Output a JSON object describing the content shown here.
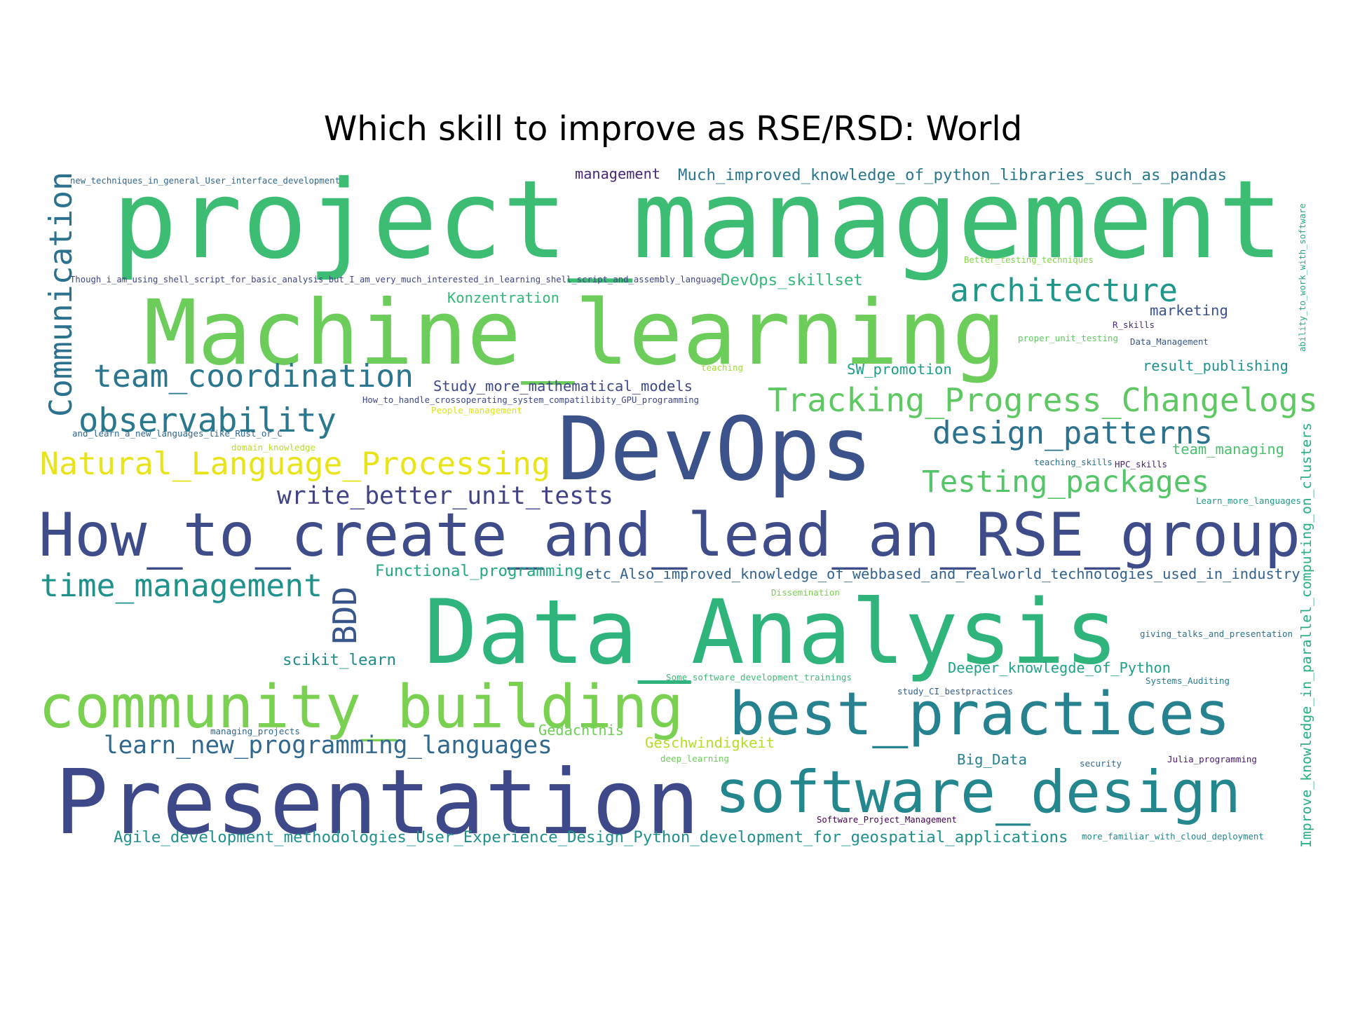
{
  "title": "Which skill to improve as RSE/RSD: World",
  "words": [
    {
      "text": "project_management",
      "color": "#3dbc74"
    },
    {
      "text": "Machine_learning",
      "color": "#6ccd5a"
    },
    {
      "text": "DevOps",
      "color": "#3b528b"
    },
    {
      "text": "Data_Analysis",
      "color": "#2fb47c"
    },
    {
      "text": "How_to_create_and_lead_an_RSE_group",
      "color": "#3e4c8a"
    },
    {
      "text": "Presentation",
      "color": "#3e4989"
    },
    {
      "text": "community_building",
      "color": "#7ad151"
    },
    {
      "text": "best_practices",
      "color": "#26828e"
    },
    {
      "text": "software_design",
      "color": "#24878e"
    },
    {
      "text": "Tracking_Progress_Changelogs",
      "color": "#5ec962"
    },
    {
      "text": "Natural_Language_Processing",
      "color": "#e8e419"
    },
    {
      "text": "architecture",
      "color": "#1f988b"
    },
    {
      "text": "design_patterns",
      "color": "#2c718e"
    },
    {
      "text": "observability",
      "color": "#2a788e"
    },
    {
      "text": "team_coordination",
      "color": "#2a768e"
    },
    {
      "text": "Testing_packages",
      "color": "#54c568"
    },
    {
      "text": "time_management",
      "color": "#20928c"
    },
    {
      "text": "Communication",
      "color": "#2c728e"
    },
    {
      "text": "write_better_unit_tests",
      "color": "#414487"
    },
    {
      "text": "learn_new_programming_languages",
      "color": "#31688e"
    },
    {
      "text": "BDD",
      "color": "#39568c"
    },
    {
      "text": "Much_improved_knowledge_of_python_libraries_such_as_pandas",
      "color": "#2a788e"
    },
    {
      "text": "management",
      "color": "#482878"
    },
    {
      "text": "DevOps_skillset",
      "color": "#35b779"
    },
    {
      "text": "Konzentration",
      "color": "#35b779"
    },
    {
      "text": "marketing",
      "color": "#3b528b"
    },
    {
      "text": "result_publishing",
      "color": "#21918c"
    },
    {
      "text": "SW_promotion",
      "color": "#1f9e89"
    },
    {
      "text": "Study_more_mathematical_models",
      "color": "#3e4a89"
    },
    {
      "text": "team_managing",
      "color": "#4ac16d"
    },
    {
      "text": "Functional_programming",
      "color": "#22a884"
    },
    {
      "text": "etc_Also_improved_knowledge_of_webbased_and_realworld_technologies_used_in_industry",
      "color": "#33638d"
    },
    {
      "text": "scikit_learn",
      "color": "#228c8d"
    },
    {
      "text": "Deeper_knowlegde_of_Python",
      "color": "#1fa287"
    },
    {
      "text": "Gedächtnis",
      "color": "#6ece58"
    },
    {
      "text": "Geschwindigkeit",
      "color": "#b5de2b"
    },
    {
      "text": "Big_Data",
      "color": "#25838e"
    },
    {
      "text": "Agile_development_methodologies_User_Experience_Design_Python_development_for_geospatial_applications",
      "color": "#21918c"
    },
    {
      "text": "Improve_knowledge_in_parallel_computing_on_clusters",
      "color": "#29af7f"
    },
    {
      "text": "new_techniques_in_general_User_interface_development",
      "color": "#31688e"
    },
    {
      "text": "Though_i_am_using_shell_script_for_basic_analysis_but_I_am_very_much_interested_in_learning_shell_script_and_assembly_language",
      "color": "#414487"
    },
    {
      "text": "Better_testing_techniques",
      "color": "#84d44b"
    },
    {
      "text": "R_skills",
      "color": "#472d7b"
    },
    {
      "text": "proper_unit_testing",
      "color": "#5ec962"
    },
    {
      "text": "Data_Management",
      "color": "#39568c"
    },
    {
      "text": "teaching",
      "color": "#a0da39"
    },
    {
      "text": "How_to_handle_crossoperating_system_compatilibity_GPU_programming",
      "color": "#3e4989"
    },
    {
      "text": "People_management",
      "color": "#dde318"
    },
    {
      "text": "and_learn_a_new_languages_like_Rust_or_C",
      "color": "#31688e"
    },
    {
      "text": "domain_knowledge",
      "color": "#b8de29"
    },
    {
      "text": "teaching_skills",
      "color": "#2c718e"
    },
    {
      "text": "HPC_skills",
      "color": "#482475"
    },
    {
      "text": "Learn_more_languages",
      "color": "#1f9a8a"
    },
    {
      "text": "Dissemination",
      "color": "#7ad151"
    },
    {
      "text": "giving_talks_and_presentation",
      "color": "#2c718e"
    },
    {
      "text": "Some_software_development_trainings",
      "color": "#3bbb75"
    },
    {
      "text": "Systems_Auditing",
      "color": "#287d8e"
    },
    {
      "text": "study_CI_bestpractices",
      "color": "#355f8d"
    },
    {
      "text": "managing_projects",
      "color": "#31688e"
    },
    {
      "text": "deep_learning",
      "color": "#6ccd5a"
    },
    {
      "text": "security",
      "color": "#30698e"
    },
    {
      "text": "Julia_programming",
      "color": "#481a6c"
    },
    {
      "text": "Software_Project_Management",
      "color": "#440154"
    },
    {
      "text": "more_familiar_with_cloud_deployment",
      "color": "#23898e"
    },
    {
      "text": "ability_to_work_with_software",
      "color": "#25ac82"
    }
  ]
}
